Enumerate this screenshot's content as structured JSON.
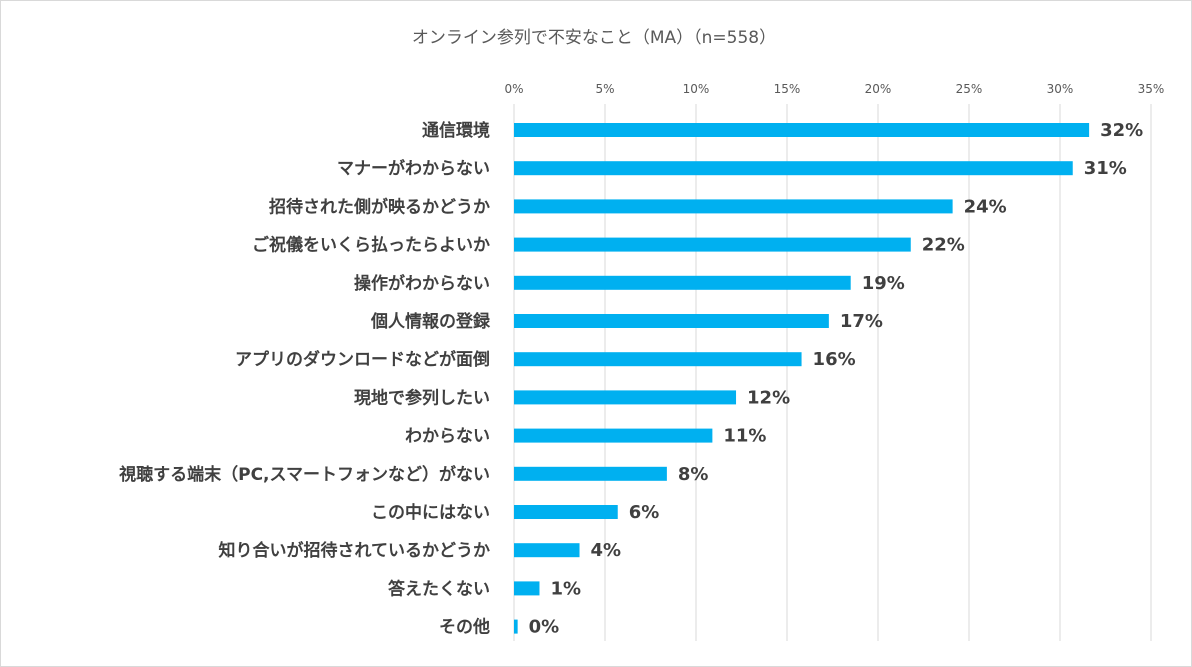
{
  "chart_data": {
    "type": "bar",
    "orientation": "horizontal",
    "title": "オンライン参列で不安なこと（MA）（n=558）",
    "xlabel": "",
    "ylabel": "",
    "xlim": [
      0,
      35
    ],
    "ticks": [
      0,
      5,
      10,
      15,
      20,
      25,
      30,
      35
    ],
    "tick_labels": [
      "0%",
      "5%",
      "10%",
      "15%",
      "20%",
      "25%",
      "30%",
      "35%"
    ],
    "grid": true,
    "legend": "none",
    "bar_color": "#00b0f0",
    "categories": [
      "通信環境",
      "マナーがわからない",
      "招待された側が映るかどうか",
      "ご祝儀をいくら払ったらよいか",
      "操作がわからない",
      "個人情報の登録",
      "アプリのダウンロードなどが面倒",
      "現地で参列したい",
      "わからない",
      "視聴する端末（PC,スマートフォンなど）がない",
      "この中にはない",
      "知り合いが招待されているかどうか",
      "答えたくない",
      "その他"
    ],
    "values": [
      31.6,
      30.7,
      24.1,
      21.8,
      18.5,
      17.3,
      15.8,
      12.2,
      10.9,
      8.4,
      5.7,
      3.6,
      1.4,
      0.2
    ],
    "data_labels": [
      "32%",
      "31%",
      "24%",
      "22%",
      "19%",
      "17%",
      "16%",
      "12%",
      "11%",
      "8%",
      "6%",
      "4%",
      "1%",
      "0%"
    ]
  }
}
